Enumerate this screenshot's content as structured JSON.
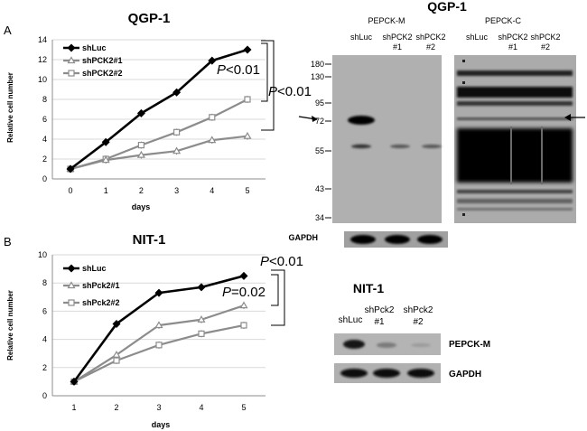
{
  "panels": {
    "a": {
      "letter": "A"
    },
    "b": {
      "letter": "B"
    }
  },
  "chart_data": [
    {
      "type": "line",
      "title": "QGP-1",
      "xlabel": "days",
      "ylabel": "Relative cell number",
      "x": [
        0,
        1,
        2,
        3,
        4,
        5
      ],
      "ylim": [
        0,
        14
      ],
      "yticks": [
        0,
        2,
        4,
        6,
        8,
        10,
        12,
        14
      ],
      "legend_position": "top-left",
      "series": [
        {
          "name": "shLuc",
          "values": [
            1.0,
            3.7,
            6.6,
            8.7,
            11.9,
            13.0
          ],
          "color": "#000000",
          "marker": "diamond"
        },
        {
          "name": "shPCK2#1",
          "values": [
            1.0,
            1.9,
            2.4,
            2.8,
            3.9,
            4.3
          ],
          "color": "#8c8c8c",
          "marker": "triangle"
        },
        {
          "name": "shPCK2#2",
          "values": [
            1.0,
            2.0,
            3.4,
            4.7,
            6.2,
            8.0
          ],
          "color": "#8c8c8c",
          "marker": "square"
        }
      ],
      "annotations": [
        {
          "p": "P",
          "text": "<0.01"
        },
        {
          "p": "P",
          "text": "<0.01"
        }
      ]
    },
    {
      "type": "line",
      "title": "NIT-1",
      "xlabel": "days",
      "ylabel": "Relative cell number",
      "x": [
        1,
        2,
        3,
        4,
        5
      ],
      "ylim": [
        0,
        10
      ],
      "yticks": [
        0,
        2,
        4,
        6,
        8,
        10
      ],
      "legend_position": "top-left",
      "series": [
        {
          "name": "shLuc",
          "values": [
            1.0,
            5.1,
            7.3,
            7.7,
            8.5
          ],
          "color": "#000000",
          "marker": "diamond"
        },
        {
          "name": "shPck2#1",
          "values": [
            1.0,
            2.9,
            5.0,
            5.4,
            6.4
          ],
          "color": "#8c8c8c",
          "marker": "triangle"
        },
        {
          "name": "shPck2#2",
          "values": [
            1.0,
            2.5,
            3.6,
            4.4,
            5.0
          ],
          "color": "#8c8c8c",
          "marker": "square"
        }
      ],
      "annotations": [
        {
          "p": "P",
          "text": "<0.01"
        },
        {
          "p": "P",
          "text": "=0.02"
        }
      ]
    }
  ],
  "blot_qgp": {
    "title": "QGP-1",
    "group_m": "PEPCK-M",
    "group_c": "PEPCK-C",
    "lanes_m": [
      {
        "l1": "shLuc",
        "l2": ""
      },
      {
        "l1": "shPCK2",
        "l2": "#1"
      },
      {
        "l1": "shPCK2",
        "l2": "#2"
      }
    ],
    "lanes_c": [
      {
        "l1": "shLuc",
        "l2": ""
      },
      {
        "l1": "shPCK2",
        "l2": "#1"
      },
      {
        "l1": "shPCK2",
        "l2": "#2"
      }
    ],
    "markers": [
      "180",
      "130",
      "95",
      "72",
      "55",
      "43",
      "34"
    ],
    "loading": "GAPDH"
  },
  "blot_nit": {
    "title": "NIT-1",
    "lanes": [
      {
        "l1": "shLuc",
        "l2": ""
      },
      {
        "l1": "shPck2",
        "l2": "#1"
      },
      {
        "l1": "shPck2",
        "l2": "#2"
      }
    ],
    "band1": "PEPCK-M",
    "band2": "GAPDH"
  }
}
